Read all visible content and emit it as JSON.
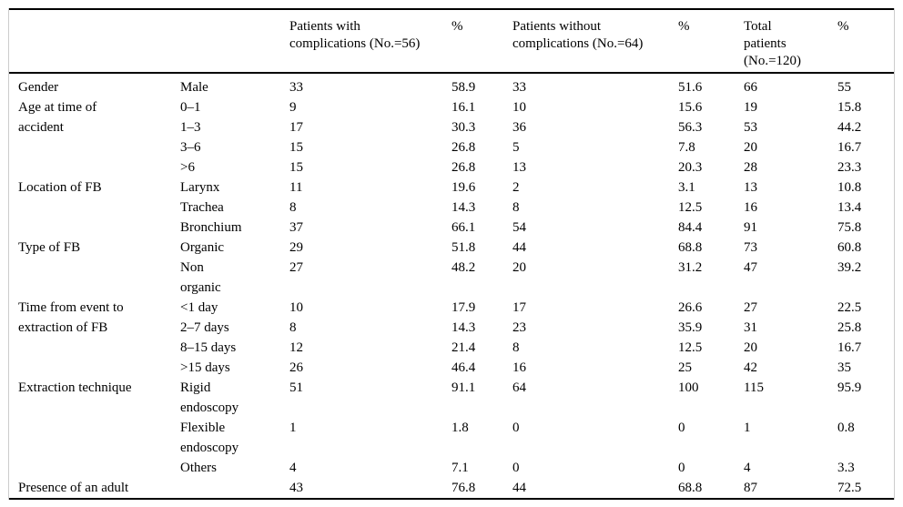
{
  "table": {
    "headers": [
      "",
      "",
      "Patients with complications (No.=56)",
      "%",
      "Patients without complications (No.=64)",
      "%",
      "Total patients (No.=120)",
      "%"
    ],
    "groups": [
      {
        "category": "Gender",
        "rows": [
          {
            "label": "Male",
            "values": [
              "33",
              "58.9",
              "33",
              "51.6",
              "66",
              "55"
            ]
          }
        ]
      },
      {
        "category": "Age at time of accident",
        "rows": [
          {
            "label": "0–1",
            "values": [
              "9",
              "16.1",
              "10",
              "15.6",
              "19",
              "15.8"
            ]
          },
          {
            "label": "1–3",
            "values": [
              "17",
              "30.3",
              "36",
              "56.3",
              "53",
              "44.2"
            ]
          },
          {
            "label": "3–6",
            "values": [
              "15",
              "26.8",
              "5",
              "7.8",
              "20",
              "16.7"
            ]
          },
          {
            "label": ">6",
            "values": [
              "15",
              "26.8",
              "13",
              "20.3",
              "28",
              "23.3"
            ]
          }
        ]
      },
      {
        "category": "Location of FB",
        "rows": [
          {
            "label": "Larynx",
            "values": [
              "11",
              "19.6",
              "2",
              "3.1",
              "13",
              "10.8"
            ]
          },
          {
            "label": "Trachea",
            "values": [
              "8",
              "14.3",
              "8",
              "12.5",
              "16",
              "13.4"
            ]
          },
          {
            "label": "Bronchium",
            "values": [
              "37",
              "66.1",
              "54",
              "84.4",
              "91",
              "75.8"
            ]
          }
        ]
      },
      {
        "category": "Type of FB",
        "rows": [
          {
            "label": "Organic",
            "values": [
              "29",
              "51.8",
              "44",
              "68.8",
              "73",
              "60.8"
            ]
          },
          {
            "label": "Non organic",
            "values": [
              "27",
              "48.2",
              "20",
              "31.2",
              "47",
              "39.2"
            ]
          }
        ]
      },
      {
        "category": "Time from event to extraction of FB",
        "rows": [
          {
            "label": "<1 day",
            "values": [
              "10",
              "17.9",
              "17",
              "26.6",
              "27",
              "22.5"
            ]
          },
          {
            "label": "2–7 days",
            "values": [
              "8",
              "14.3",
              "23",
              "35.9",
              "31",
              "25.8"
            ]
          },
          {
            "label": "8–15 days",
            "values": [
              "12",
              "21.4",
              "8",
              "12.5",
              "20",
              "16.7"
            ]
          },
          {
            "label": ">15 days",
            "values": [
              "26",
              "46.4",
              "16",
              "25",
              "42",
              "35"
            ]
          }
        ]
      },
      {
        "category": "Extraction technique",
        "rows": [
          {
            "label": "Rigid endoscopy",
            "values": [
              "51",
              "91.1",
              "64",
              "100",
              "115",
              "95.9"
            ]
          },
          {
            "label": "Flexible endoscopy",
            "values": [
              "1",
              "1.8",
              "0",
              "0",
              "1",
              "0.8"
            ]
          },
          {
            "label": "Others",
            "values": [
              "4",
              "7.1",
              "0",
              "0",
              "4",
              "3.3"
            ]
          }
        ]
      },
      {
        "category": "Presence of an adult",
        "rows": [
          {
            "label": "",
            "values": [
              "43",
              "76.8",
              "44",
              "68.8",
              "87",
              "72.5"
            ]
          }
        ]
      }
    ]
  }
}
